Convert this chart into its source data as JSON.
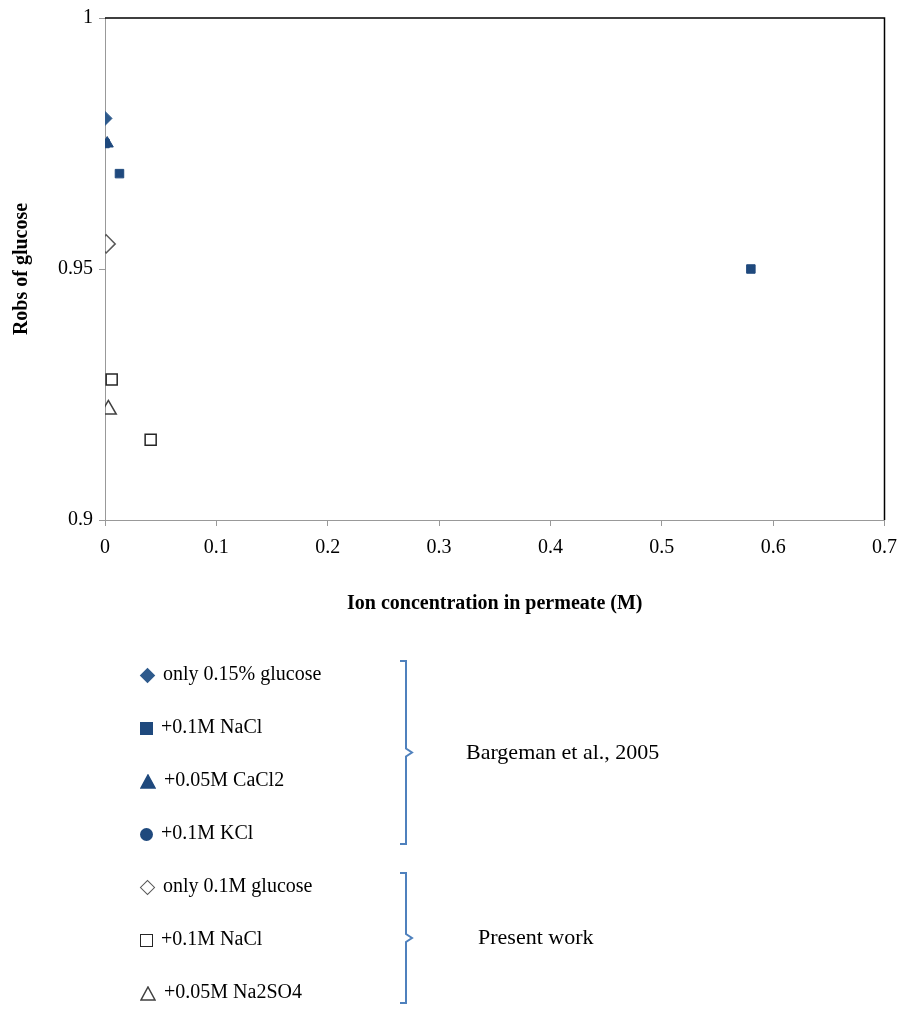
{
  "chart_data": {
    "type": "scatter",
    "xlabel": "Ion concentration in permeate (M)",
    "ylabel": "Robs of glucose",
    "xlim": [
      0,
      0.7
    ],
    "xticks": [
      0,
      0.1,
      0.2,
      0.3,
      0.4,
      0.5,
      0.6,
      0.7
    ],
    "ylim": [
      0.9,
      1
    ],
    "yticks": [
      0.9,
      0.95,
      1
    ],
    "grid": false,
    "legend": "bottom",
    "annotations": [
      "Bargeman et al., 2005",
      "Present work"
    ],
    "series": [
      {
        "name": "only 0.15% glucose",
        "color": "#2e5a8c",
        "marker": "diamond",
        "x": [
          0
        ],
        "values": [
          0.98
        ]
      },
      {
        "name": "+0.1M NaCl",
        "color": "#1f497d",
        "marker": "square",
        "x": [
          0,
          0.013,
          0.58
        ],
        "values": [
          0.975,
          0.969,
          0.95
        ]
      },
      {
        "name": "+0.05M CaCl2",
        "color": "#1f497d",
        "marker": "triangle",
        "x": [
          0.002
        ],
        "values": [
          0.975
        ]
      },
      {
        "name": "+0.1M KCl",
        "color": "#1f497d",
        "marker": "circle",
        "values": [
          null
        ]
      },
      {
        "name": "only 0.1M glucose",
        "color": "#595959",
        "marker": "diamond",
        "x": [
          0.001
        ],
        "values": [
          0.955
        ]
      },
      {
        "name": "+0.1M NaCl",
        "color": "#262626",
        "marker": "square",
        "x": [
          0.006,
          0.041
        ],
        "values": [
          0.928,
          0.916
        ]
      },
      {
        "name": "+0.05M Na2SO4",
        "color": "#404040",
        "marker": "triangle",
        "x": [
          0.003
        ],
        "values": [
          0.922
        ]
      }
    ]
  }
}
